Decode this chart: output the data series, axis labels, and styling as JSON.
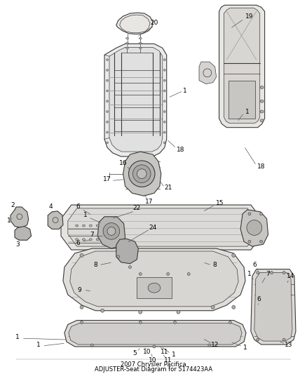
{
  "title1": "2007 Chrysler Pacifica",
  "title2": "ADJUSTER-Seat Diagram for 5174423AA",
  "bg": "#ffffff",
  "lc": "#3a3a3a",
  "lw_main": 0.8,
  "lw_thin": 0.5,
  "lw_leader": 0.5,
  "label_fs": 6.5,
  "title_fs": 6.0
}
